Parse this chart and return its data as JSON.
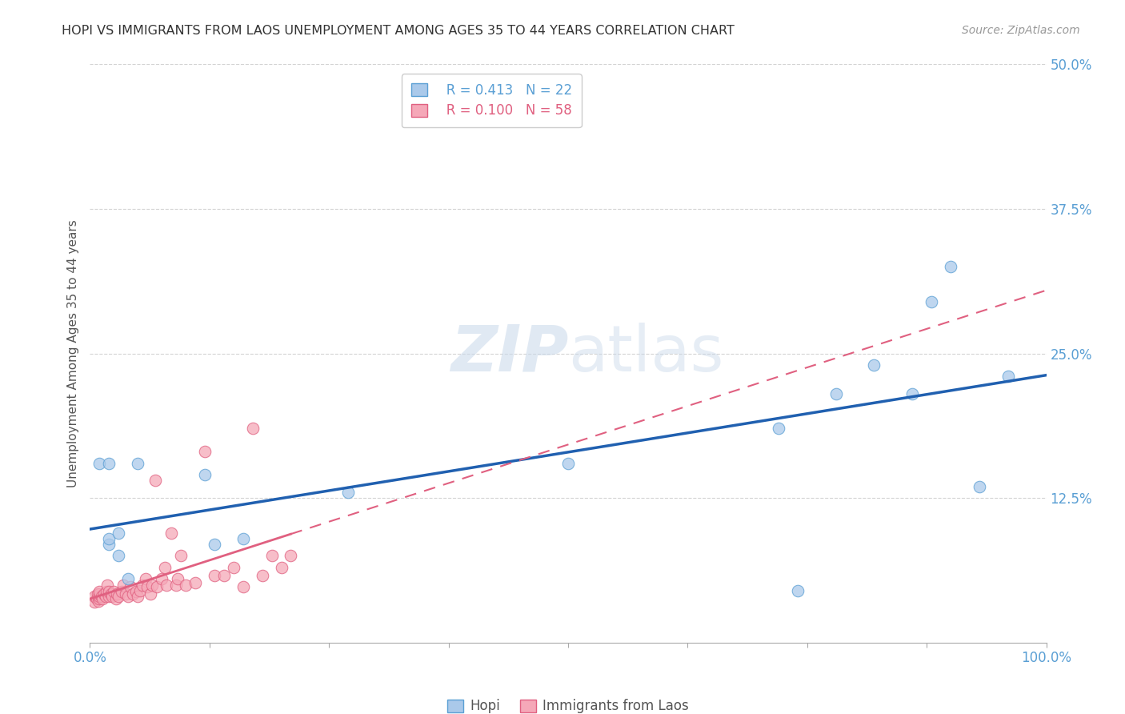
{
  "title": "HOPI VS IMMIGRANTS FROM LAOS UNEMPLOYMENT AMONG AGES 35 TO 44 YEARS CORRELATION CHART",
  "source": "Source: ZipAtlas.com",
  "ylabel": "Unemployment Among Ages 35 to 44 years",
  "xlim": [
    0.0,
    1.0
  ],
  "ylim": [
    0.0,
    0.5
  ],
  "xtick_positions": [
    0.0,
    0.125,
    0.25,
    0.375,
    0.5,
    0.625,
    0.75,
    0.875,
    1.0
  ],
  "xticklabels": [
    "0.0%",
    "",
    "",
    "",
    "",
    "",
    "",
    "",
    "100.0%"
  ],
  "ytick_positions": [
    0.125,
    0.25,
    0.375,
    0.5
  ],
  "ytick_labels": [
    "12.5%",
    "25.0%",
    "37.5%",
    "50.0%"
  ],
  "hopi_color": "#aac9ea",
  "hopi_edge_color": "#5a9fd4",
  "laos_color": "#f5a8b8",
  "laos_edge_color": "#e06080",
  "hopi_line_color": "#2060b0",
  "laos_line_color": "#e06080",
  "legend_r_hopi": "R = 0.413",
  "legend_n_hopi": "N = 22",
  "legend_r_laos": "R = 0.100",
  "legend_n_laos": "N = 58",
  "hopi_x": [
    0.01,
    0.02,
    0.02,
    0.02,
    0.03,
    0.03,
    0.04,
    0.05,
    0.12,
    0.13,
    0.16,
    0.27,
    0.5,
    0.72,
    0.74,
    0.78,
    0.82,
    0.86,
    0.88,
    0.9,
    0.93,
    0.96
  ],
  "hopi_y": [
    0.155,
    0.085,
    0.09,
    0.155,
    0.095,
    0.075,
    0.055,
    0.155,
    0.145,
    0.085,
    0.09,
    0.13,
    0.155,
    0.185,
    0.045,
    0.215,
    0.24,
    0.215,
    0.295,
    0.325,
    0.135,
    0.23
  ],
  "laos_x": [
    0.005,
    0.005,
    0.007,
    0.008,
    0.009,
    0.01,
    0.01,
    0.01,
    0.01,
    0.012,
    0.013,
    0.015,
    0.016,
    0.017,
    0.018,
    0.02,
    0.02,
    0.022,
    0.023,
    0.025,
    0.027,
    0.028,
    0.03,
    0.033,
    0.035,
    0.037,
    0.04,
    0.042,
    0.045,
    0.048,
    0.05,
    0.052,
    0.055,
    0.058,
    0.06,
    0.063,
    0.065,
    0.068,
    0.07,
    0.075,
    0.078,
    0.08,
    0.085,
    0.09,
    0.092,
    0.095,
    0.1,
    0.11,
    0.12,
    0.13,
    0.14,
    0.15,
    0.16,
    0.17,
    0.18,
    0.19,
    0.2,
    0.21
  ],
  "laos_y": [
    0.035,
    0.04,
    0.038,
    0.042,
    0.036,
    0.038,
    0.04,
    0.042,
    0.044,
    0.04,
    0.038,
    0.042,
    0.04,
    0.044,
    0.05,
    0.04,
    0.044,
    0.042,
    0.04,
    0.044,
    0.038,
    0.042,
    0.04,
    0.044,
    0.05,
    0.042,
    0.04,
    0.048,
    0.042,
    0.044,
    0.04,
    0.045,
    0.05,
    0.055,
    0.048,
    0.042,
    0.05,
    0.14,
    0.048,
    0.055,
    0.065,
    0.05,
    0.095,
    0.05,
    0.055,
    0.075,
    0.05,
    0.052,
    0.165,
    0.058,
    0.058,
    0.065,
    0.048,
    0.185,
    0.058,
    0.075,
    0.065,
    0.075
  ],
  "watermark_zip": "ZIP",
  "watermark_atlas": "atlas",
  "bg_color": "#ffffff",
  "grid_color": "#d0d0d0",
  "tick_label_color": "#5a9fd4"
}
